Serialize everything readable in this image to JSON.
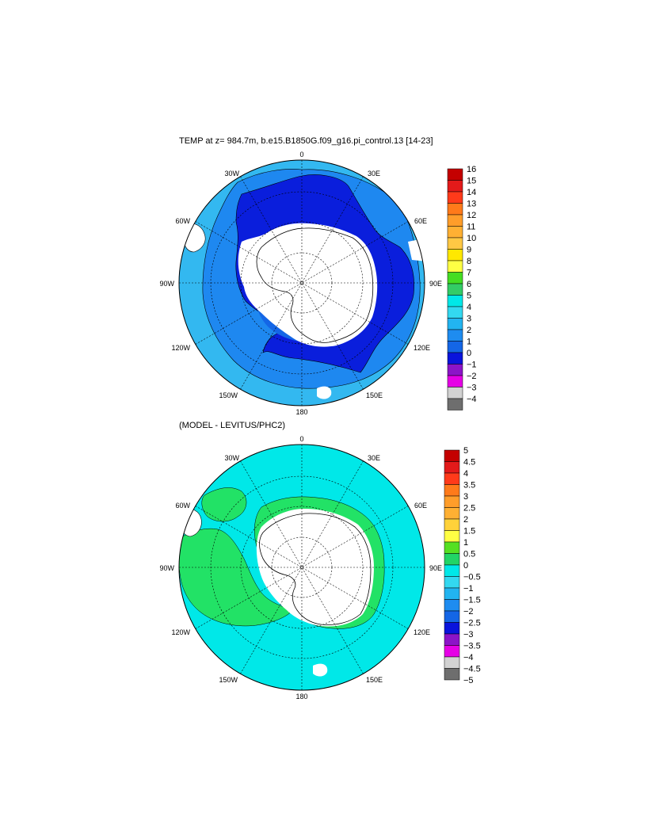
{
  "panels": [
    {
      "id": "top",
      "title": "TEMP at z= 984.7m, b.e15.B1850G.f09_g16.pi_control.13 [14-23]",
      "lon_labels": {
        "n": "0",
        "ne30": "30E",
        "ne60": "60E",
        "e90": "90E",
        "e120": "120E",
        "e150": "150E",
        "s180": "180",
        "w150": "150W",
        "w120": "120W",
        "w90": "90W",
        "w60": "60W",
        "w30": "30W"
      },
      "colorbar": {
        "labels": [
          "16",
          "15",
          "14",
          "13",
          "12",
          "11",
          "10",
          "9",
          "8",
          "7",
          "6",
          "5",
          "4",
          "3",
          "2",
          "1",
          "0",
          "−1",
          "−2",
          "−3",
          "−4"
        ],
        "colors": [
          "#c40000",
          "#e31a1a",
          "#ff3a1a",
          "#ff7a1a",
          "#ff9d2a",
          "#ffb033",
          "#ffc844",
          "#ffe800",
          "#ffff44",
          "#44dd22",
          "#33cc66",
          "#00e8e8",
          "#33d8f0",
          "#22b4f0",
          "#1e8cf0",
          "#1466e6",
          "#0a14dc",
          "#8c14c8",
          "#e600e6",
          "#d2d2d2",
          "#6e6e6e"
        ]
      },
      "legend_colors": {
        "ocean_outer": "#33b8f0",
        "ocean_mid": "#1e88f0",
        "ocean_inner": "#1466e6",
        "ocean_deep": "#0a1edc",
        "ocean_edge": "#3ccff5",
        "land": "#ffffff"
      }
    },
    {
      "id": "bottom",
      "title": "(MODEL - LEVITUS/PHC2)",
      "lon_labels": {
        "n": "0",
        "ne30": "30E",
        "ne60": "60E",
        "e90": "90E",
        "e120": "120E",
        "e150": "150E",
        "s180": "180",
        "w150": "150W",
        "w120": "120W",
        "w90": "90W",
        "w60": "60W",
        "w30": "30W"
      },
      "colorbar": {
        "labels": [
          "5",
          "4.5",
          "4",
          "3.5",
          "3",
          "2.5",
          "2",
          "1.5",
          "1",
          "0.5",
          "0",
          "−0.5",
          "−1",
          "−1.5",
          "−2",
          "−2.5",
          "−3",
          "−3.5",
          "−4",
          "−4.5",
          "−5"
        ],
        "colors": [
          "#c40000",
          "#e31a1a",
          "#ff3a1a",
          "#ff7a1a",
          "#ff9d2a",
          "#ffb033",
          "#ffd23a",
          "#ffff44",
          "#55e022",
          "#22d466",
          "#00e8e8",
          "#33d8f0",
          "#22b4f0",
          "#1e8cf0",
          "#1466e6",
          "#0a14dc",
          "#8c14c8",
          "#e600e6",
          "#d2d2d2",
          "#6e6e6e"
        ]
      },
      "legend_colors": {
        "ocean_outer": "#00e8e8",
        "ocean_mid": "#22e266",
        "land": "#ffffff"
      }
    }
  ]
}
